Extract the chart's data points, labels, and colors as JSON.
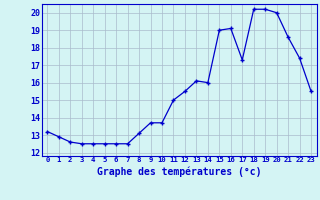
{
  "x": [
    0,
    1,
    2,
    3,
    4,
    5,
    6,
    7,
    8,
    9,
    10,
    11,
    12,
    13,
    14,
    15,
    16,
    17,
    18,
    19,
    20,
    21,
    22,
    23
  ],
  "y": [
    13.2,
    12.9,
    12.6,
    12.5,
    12.5,
    12.5,
    12.5,
    12.5,
    13.1,
    13.7,
    13.7,
    15.0,
    15.5,
    16.1,
    16.0,
    19.0,
    19.1,
    17.3,
    20.2,
    20.2,
    20.0,
    18.6,
    17.4,
    15.5
  ],
  "xlabel": "Graphe des températures (°c)",
  "xlim": [
    -0.5,
    23.5
  ],
  "ylim": [
    11.8,
    20.5
  ],
  "yticks": [
    12,
    13,
    14,
    15,
    16,
    17,
    18,
    19,
    20
  ],
  "xticks": [
    0,
    1,
    2,
    3,
    4,
    5,
    6,
    7,
    8,
    9,
    10,
    11,
    12,
    13,
    14,
    15,
    16,
    17,
    18,
    19,
    20,
    21,
    22,
    23
  ],
  "line_color": "#0000cc",
  "marker": "+",
  "bg_color": "#d4f4f4",
  "grid_color": "#aabbcc",
  "label_color": "#0000cc",
  "tick_color": "#0000cc"
}
